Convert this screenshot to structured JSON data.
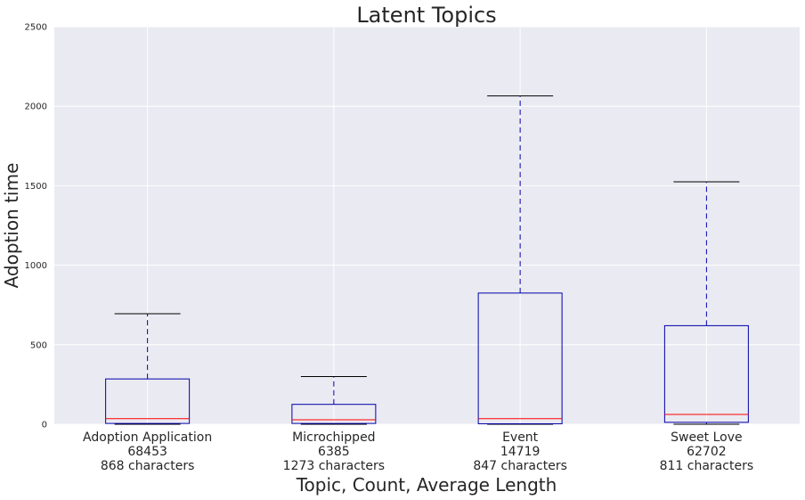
{
  "chart_data": {
    "type": "box",
    "title": "Latent Topics",
    "xlabel": "Topic, Count, Average Length",
    "ylabel": "Adoption time",
    "ylim": [
      0,
      2500
    ],
    "yticks": [
      "0",
      "500",
      "1000",
      "1500",
      "2000",
      "2500"
    ],
    "grid": true,
    "background": "#EAEAF2",
    "colors": {
      "box": "#0000AA",
      "median": "#FF0000",
      "whisker": "#0000AA",
      "cap": "#000000",
      "grid": "#FFFFFF"
    },
    "categories": [
      {
        "lines": [
          "Adoption Application",
          "68453",
          "868 characters"
        ],
        "whislo": 0,
        "q1": 5,
        "median": 35,
        "q3": 285,
        "whishi": 695
      },
      {
        "lines": [
          "Microchipped",
          "6385",
          "1273 characters"
        ],
        "whislo": 0,
        "q1": 5,
        "median": 28,
        "q3": 125,
        "whishi": 300
      },
      {
        "lines": [
          "Event",
          "14719",
          "847 characters"
        ],
        "whislo": 0,
        "q1": 3,
        "median": 35,
        "q3": 825,
        "whishi": 2065
      },
      {
        "lines": [
          "Sweet Love",
          "62702",
          "811 characters"
        ],
        "whislo": 0,
        "q1": 12,
        "median": 62,
        "q3": 620,
        "whishi": 1525
      }
    ]
  }
}
